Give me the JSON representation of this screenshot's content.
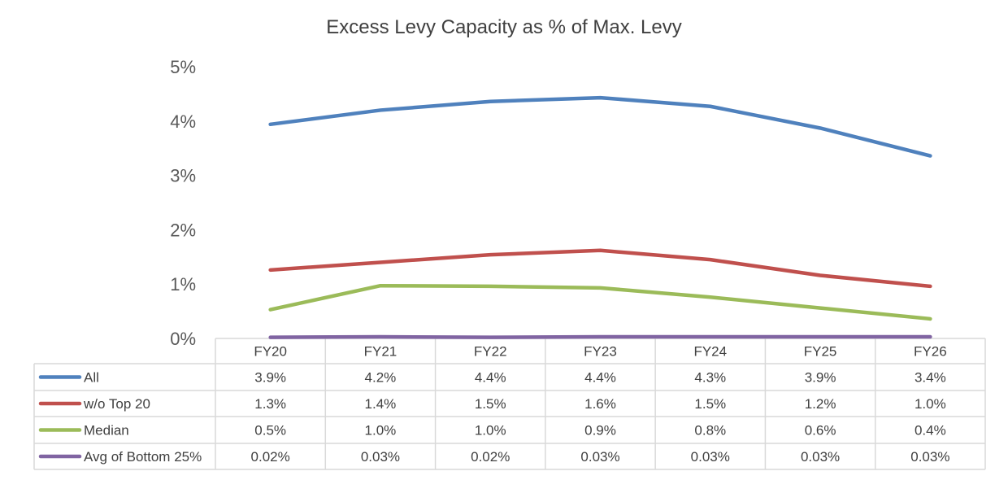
{
  "chart_data": {
    "type": "line",
    "title": "Excess Levy Capacity as % of Max. Levy",
    "categories": [
      "FY20",
      "FY21",
      "FY22",
      "FY23",
      "FY24",
      "FY25",
      "FY26"
    ],
    "ylim": [
      0,
      5
    ],
    "yticks": [
      "0%",
      "1%",
      "2%",
      "3%",
      "4%",
      "5%"
    ],
    "grid": false,
    "legend": "data-table",
    "series": [
      {
        "name": "All",
        "color": "#4f81bd",
        "values": [
          3.94,
          4.2,
          4.36,
          4.43,
          4.27,
          3.87,
          3.36
        ],
        "labels": [
          "3.9%",
          "4.2%",
          "4.4%",
          "4.4%",
          "4.3%",
          "3.9%",
          "3.4%"
        ]
      },
      {
        "name": "w/o Top 20",
        "color": "#c0504d",
        "values": [
          1.26,
          1.4,
          1.54,
          1.62,
          1.45,
          1.16,
          0.96
        ],
        "labels": [
          "1.3%",
          "1.4%",
          "1.5%",
          "1.6%",
          "1.5%",
          "1.2%",
          "1.0%"
        ]
      },
      {
        "name": "Median",
        "color": "#9bbb59",
        "values": [
          0.53,
          0.97,
          0.96,
          0.93,
          0.76,
          0.56,
          0.36
        ],
        "labels": [
          "0.5%",
          "1.0%",
          "1.0%",
          "0.9%",
          "0.8%",
          "0.6%",
          "0.4%"
        ]
      },
      {
        "name": "Avg of Bottom 25%",
        "color": "#8064a2",
        "values": [
          0.02,
          0.03,
          0.02,
          0.03,
          0.03,
          0.03,
          0.03
        ],
        "labels": [
          "0.02%",
          "0.03%",
          "0.02%",
          "0.03%",
          "0.03%",
          "0.03%",
          "0.03%"
        ]
      }
    ]
  }
}
